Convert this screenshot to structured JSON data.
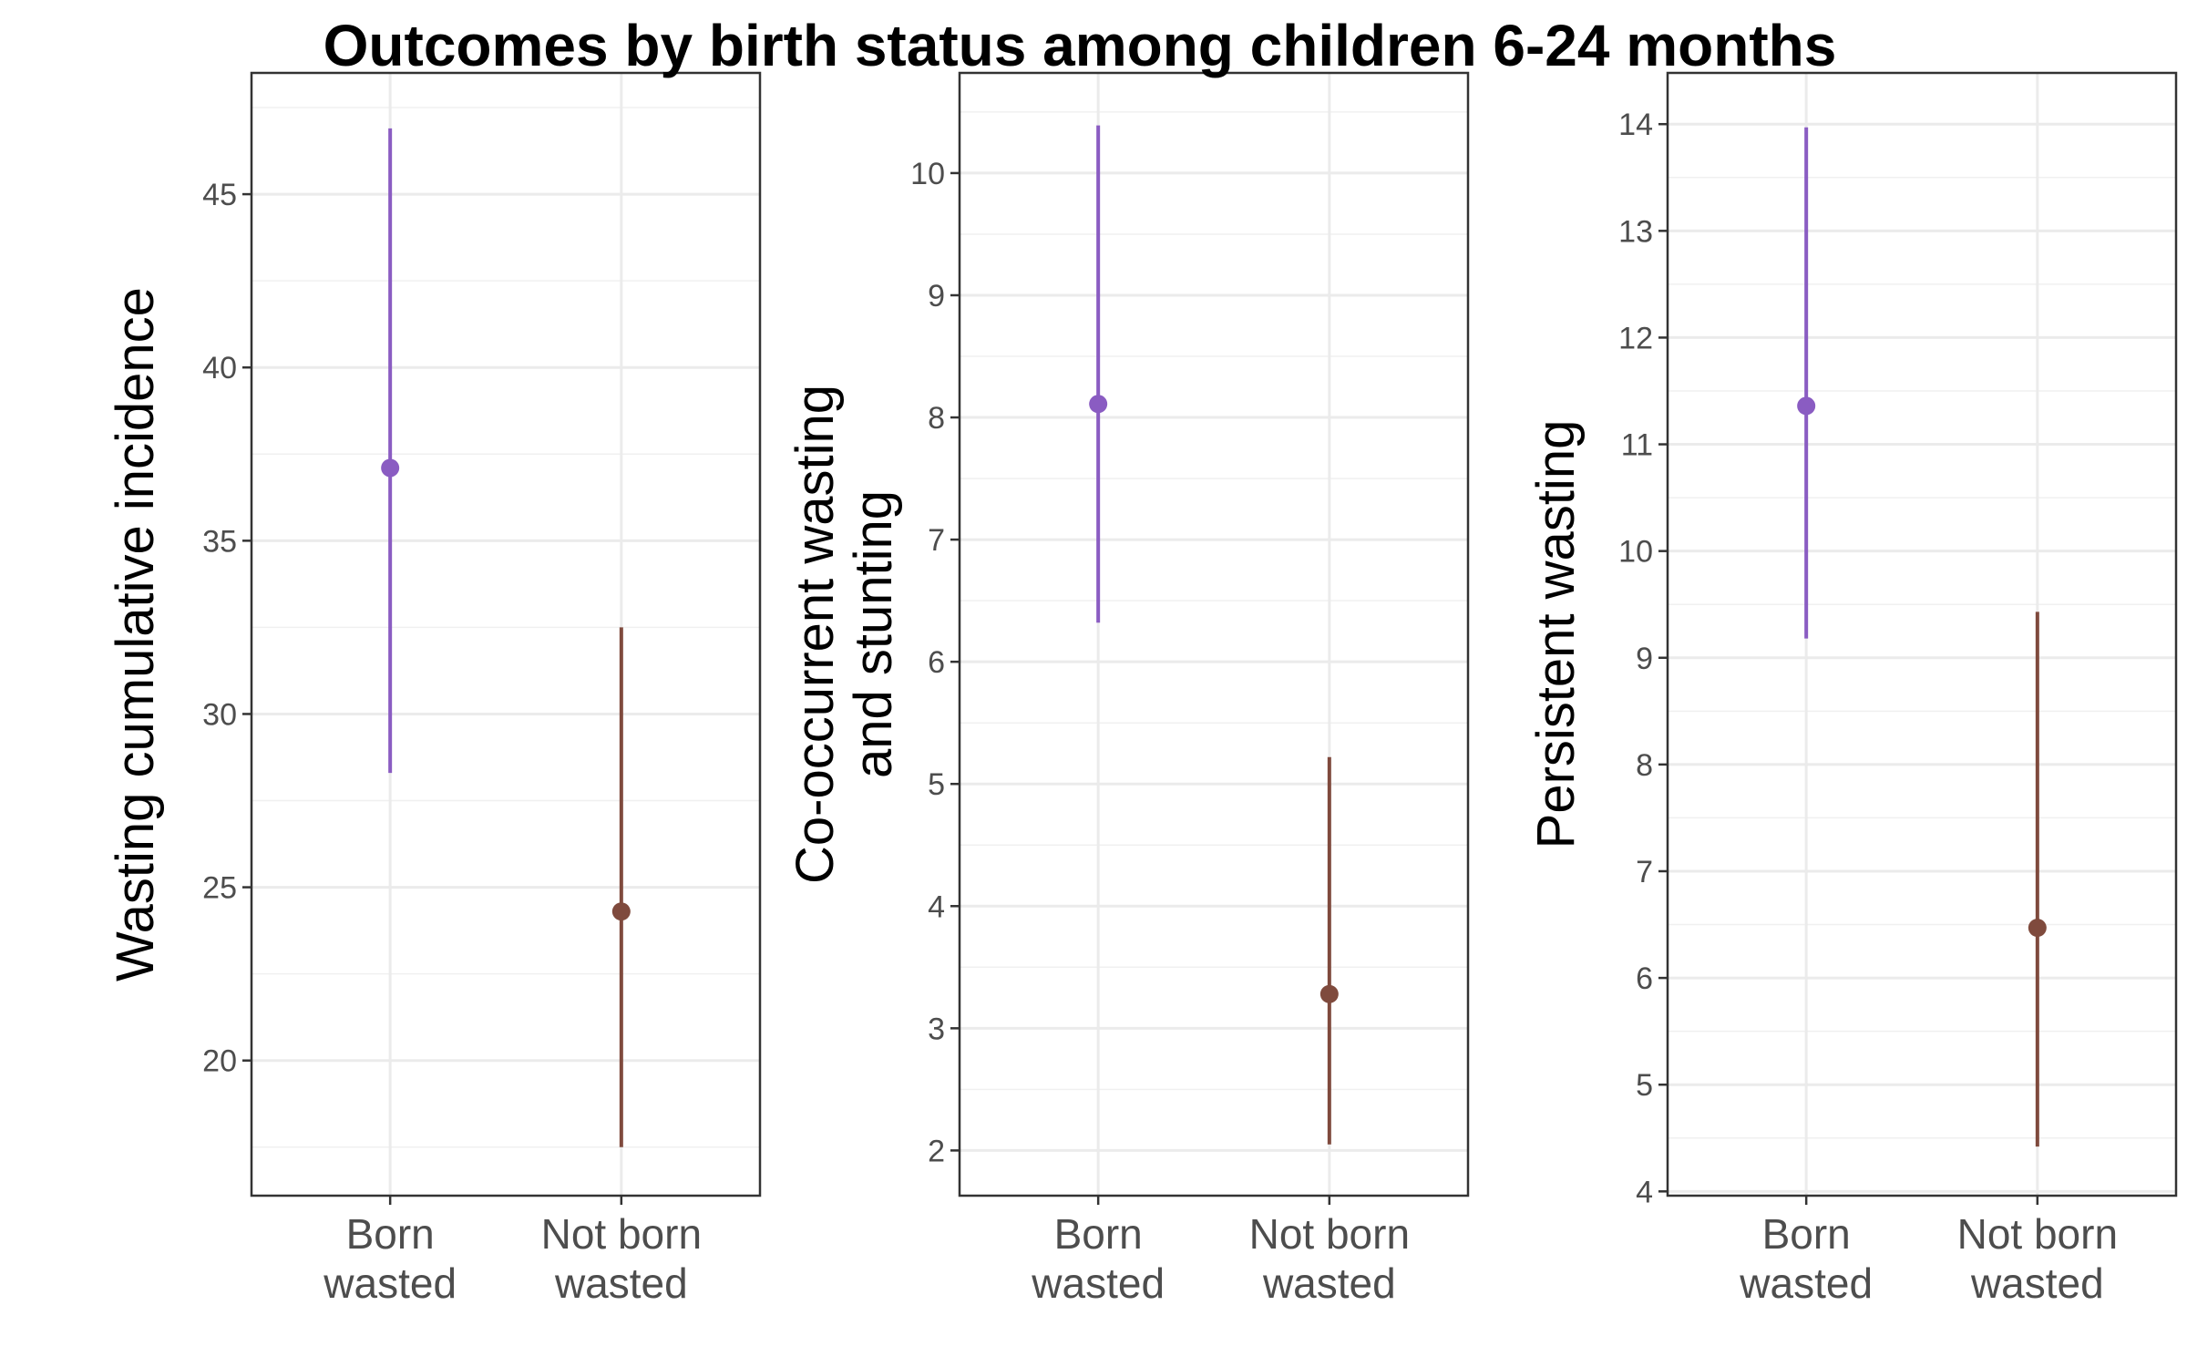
{
  "figure": {
    "title": "Outcomes by birth status among children 6-24 months"
  },
  "chart_data": [
    {
      "type": "scatter",
      "title": "",
      "xlabel": "",
      "ylabel": "Wasting cumulative incidence",
      "categories": [
        "Born\nwasted",
        "Not born\nwasted"
      ],
      "estimates": [
        37.1,
        24.3
      ],
      "lower": [
        28.3,
        17.5
      ],
      "upper": [
        46.9,
        32.5
      ],
      "colors": [
        "#8A5CC2",
        "#7F4A3D"
      ],
      "ylim": [
        16.1,
        48.5
      ],
      "yticks": [
        20,
        25,
        30,
        35,
        40,
        45
      ],
      "grid": true,
      "legend": "none"
    },
    {
      "type": "scatter",
      "title": "",
      "xlabel": "",
      "ylabel": "Co-occurrent wasting\nand stunting",
      "categories": [
        "Born\nwasted",
        "Not born\nwasted"
      ],
      "estimates": [
        8.11,
        3.28
      ],
      "lower": [
        6.32,
        2.05
      ],
      "upper": [
        10.39,
        5.22
      ],
      "colors": [
        "#8A5CC2",
        "#7F4A3D"
      ],
      "ylim": [
        1.63,
        10.82
      ],
      "yticks": [
        2,
        3,
        4,
        5,
        6,
        7,
        8,
        9,
        10
      ],
      "grid": true,
      "legend": "none"
    },
    {
      "type": "scatter",
      "title": "",
      "xlabel": "",
      "ylabel": "Persistent wasting",
      "categories": [
        "Born\nwasted",
        "Not born\nwasted"
      ],
      "estimates": [
        11.36,
        6.47
      ],
      "lower": [
        9.18,
        4.42
      ],
      "upper": [
        13.97,
        9.43
      ],
      "colors": [
        "#8A5CC2",
        "#7F4A3D"
      ],
      "ylim": [
        3.96,
        14.48
      ],
      "yticks": [
        4,
        5,
        6,
        7,
        8,
        9,
        10,
        11,
        12,
        13,
        14
      ],
      "grid": true,
      "legend": "none"
    }
  ]
}
